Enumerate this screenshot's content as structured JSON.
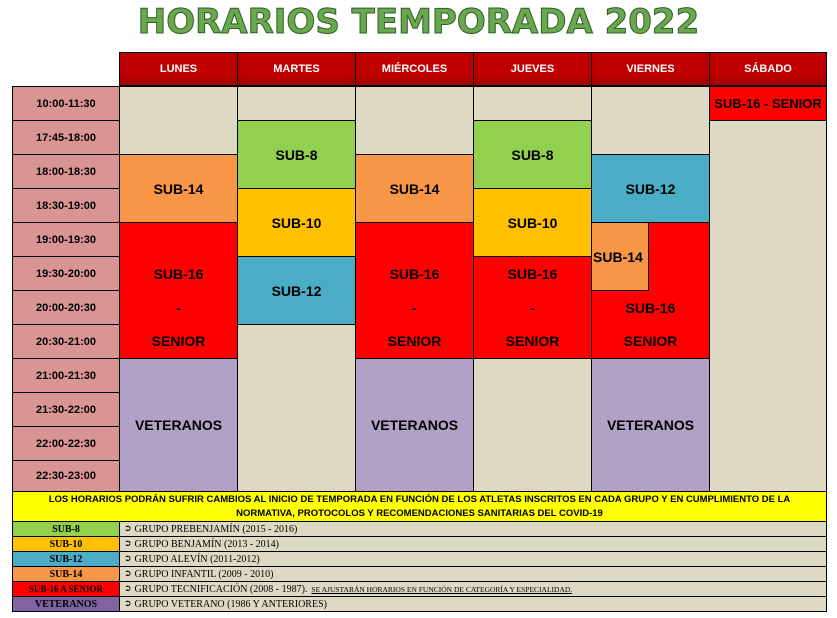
{
  "title": "HORARIOS TEMPORADA 2022",
  "days": [
    "LUNES",
    "MARTES",
    "MIÉRCOLES",
    "JUEVES",
    "VIERNES",
    "SÁBADO"
  ],
  "times": [
    "10:00-11:30",
    "17:45-18:00",
    "18:00-18:30",
    "18:30-19:00",
    "19:00-19:30",
    "19:30-20:00",
    "20:00-20:30",
    "20:30-21:00",
    "21:00-21:30",
    "21:30-22:00",
    "22:00-22:30",
    "22:30-23:00"
  ],
  "blocks": {
    "sub8": "SUB-8",
    "sub10": "SUB-10",
    "sub12": "SUB-12",
    "sub14": "SUB-14",
    "sub16": "SUB-16",
    "dash": "-",
    "senior": "SENIOR",
    "veteranos": "VETERANOS",
    "sab": "SUB-16 - SENIOR"
  },
  "note": "LOS HORARIOS PODRÁN SUFRIR CAMBIOS AL INICIO DE TEMPORADA EN FUNCIÓN DE LOS ATLETAS INSCRITOS EN CADA GRUPO Y EN CUMPLIMIENTO DE LA NORMATIVA, PROTOCOLOS Y RECOMENDACIONES SANITARIAS DEL COVID-19",
  "legend": [
    {
      "label": "SUB-8",
      "text": "GRUPO PREBENJAMÍN (2015 - 2016)",
      "color": "#92d050"
    },
    {
      "label": "SUB-10",
      "text": "GRUPO BENJAMÍN (2013 - 2014)",
      "color": "#ffc000"
    },
    {
      "label": "SUB-12",
      "text": "GRUPO ALEVÍN (2011-2012)",
      "color": "#4bacc6"
    },
    {
      "label": "SUB-14",
      "text": "GRUPO INFANTIL (2009 - 2010)",
      "color": "#f79646"
    },
    {
      "label": "SUB-16 A SENIOR",
      "text": "GRUPO TECNIFICACIÓN (2008 - 1987).",
      "extra": "SE AJUSTARÁN HORARIOS EN FUNCIÓN DE CATEGORÍA Y ESPECIALIDAD.",
      "color": "#ff0000"
    },
    {
      "label": "VETERANOS",
      "text": "GRUPO VETERANO (1986 Y ANTERIORES)",
      "color": "#8064a2"
    }
  ],
  "legend_arrow": "➲"
}
